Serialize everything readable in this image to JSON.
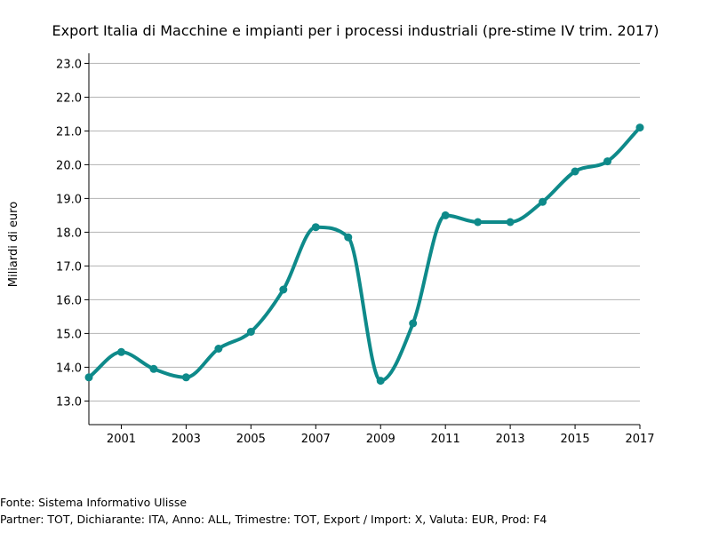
{
  "footer": {
    "source": "Fonte: Sistema Informativo Ulisse",
    "details": "Partner: TOT, Dichiarante: ITA, Anno: ALL, Trimestre: TOT, Export / Import: X, Valuta: EUR, Prod: F4"
  },
  "chart_data": {
    "type": "line",
    "title": "Export Italia di Macchine e impianti per i processi industriali (pre-stime IV trim. 2017)",
    "xlabel": "",
    "ylabel": "Miliardi di euro",
    "x": [
      2000,
      2001,
      2002,
      2003,
      2004,
      2005,
      2006,
      2007,
      2008,
      2009,
      2010,
      2011,
      2012,
      2013,
      2014,
      2015,
      2016,
      2017
    ],
    "series": [
      {
        "values": [
          13.7,
          14.45,
          13.95,
          13.7,
          14.55,
          15.05,
          16.3,
          18.15,
          17.85,
          13.6,
          15.3,
          18.5,
          18.3,
          18.3,
          18.9,
          19.8,
          20.1,
          21.1
        ]
      }
    ],
    "xticks": [
      "2001",
      "2003",
      "2005",
      "2007",
      "2009",
      "2011",
      "2013",
      "2015",
      "2017"
    ],
    "yticks": [
      "13.0",
      "14.0",
      "15.0",
      "16.0",
      "17.0",
      "18.0",
      "19.0",
      "20.0",
      "21.0",
      "22.0",
      "23.0"
    ],
    "xlim": [
      2000,
      2017
    ],
    "ylim": [
      12.3,
      23.3
    ],
    "grid": "horizontal",
    "color": "#0e8a8a",
    "legend": "none"
  }
}
